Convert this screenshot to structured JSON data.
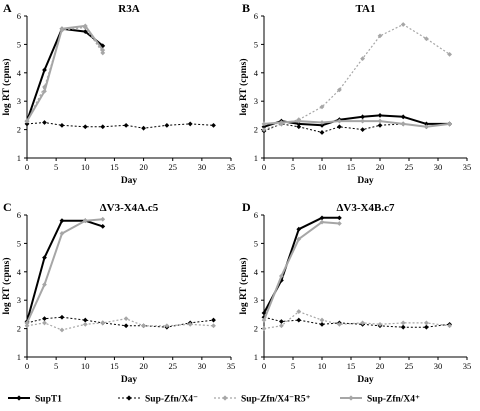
{
  "chart_data": {
    "panels": [
      {
        "panel_label": "A",
        "type": "line",
        "title": "R3A",
        "xlabel": "Day",
        "ylabel": "log RT (cpms)",
        "xlim": [
          0,
          35
        ],
        "ylim": [
          1,
          6
        ],
        "xticks": [
          0,
          5,
          10,
          15,
          20,
          25,
          30,
          35
        ],
        "yticks": [
          1,
          2,
          3,
          4,
          5,
          6
        ],
        "series": [
          {
            "name": "SupT1",
            "x": [
              0,
              3,
              6,
              10,
              13
            ],
            "y": [
              2.3,
              4.1,
              5.55,
              5.45,
              4.95
            ]
          },
          {
            "name": "Sup-Zfn/X4⁻",
            "x": [
              0,
              3,
              6,
              10,
              13,
              17,
              20,
              24,
              28,
              32
            ],
            "y": [
              2.2,
              2.25,
              2.15,
              2.1,
              2.1,
              2.15,
              2.05,
              2.15,
              2.2,
              2.15
            ]
          },
          {
            "name": "Sup-Zfn/X4⁻R5⁺",
            "x": [
              0,
              3,
              6,
              10,
              13
            ],
            "y": [
              2.3,
              3.5,
              5.5,
              5.6,
              4.7
            ]
          },
          {
            "name": "Sup-Zfn/X4⁺",
            "x": [
              0,
              3,
              6,
              10,
              13
            ],
            "y": [
              2.3,
              3.35,
              5.55,
              5.65,
              4.8
            ]
          }
        ]
      },
      {
        "panel_label": "B",
        "type": "line",
        "title": "TA1",
        "xlabel": "Day",
        "ylabel": "log RT (cpms)",
        "xlim": [
          0,
          35
        ],
        "ylim": [
          1,
          6
        ],
        "xticks": [
          0,
          5,
          10,
          15,
          20,
          25,
          30,
          35
        ],
        "yticks": [
          1,
          2,
          3,
          4,
          5,
          6
        ],
        "series": [
          {
            "name": "SupT1",
            "x": [
              0,
              3,
              6,
              10,
              13,
              17,
              20,
              24,
              28,
              32
            ],
            "y": [
              2.1,
              2.3,
              2.2,
              2.15,
              2.35,
              2.45,
              2.5,
              2.45,
              2.2,
              2.2
            ]
          },
          {
            "name": "Sup-Zfn/X4⁻",
            "x": [
              0,
              3,
              6,
              10,
              13,
              17,
              20,
              24,
              28,
              32
            ],
            "y": [
              1.95,
              2.2,
              2.1,
              1.9,
              2.1,
              2.0,
              2.15,
              2.2,
              2.1,
              2.2
            ]
          },
          {
            "name": "Sup-Zfn/X4⁻R5⁺",
            "x": [
              0,
              3,
              6,
              10,
              13,
              17,
              20,
              24,
              28,
              32
            ],
            "y": [
              2.0,
              2.2,
              2.35,
              2.8,
              3.4,
              4.5,
              5.3,
              5.7,
              5.2,
              4.65
            ]
          },
          {
            "name": "Sup-Zfn/X4⁺",
            "x": [
              0,
              3,
              6,
              10,
              13,
              17,
              20,
              24,
              28,
              32
            ],
            "y": [
              2.2,
              2.25,
              2.3,
              2.25,
              2.3,
              2.3,
              2.3,
              2.2,
              2.1,
              2.2
            ]
          }
        ]
      },
      {
        "panel_label": "C",
        "type": "line",
        "title": "ΔV3-X4A.c5",
        "xlabel": "Day",
        "ylabel": "log RT (cpms)",
        "xlim": [
          0,
          35
        ],
        "ylim": [
          1,
          6
        ],
        "xticks": [
          0,
          5,
          10,
          15,
          20,
          25,
          30,
          35
        ],
        "yticks": [
          1,
          2,
          3,
          4,
          5,
          6
        ],
        "series": [
          {
            "name": "SupT1",
            "x": [
              0,
              3,
              6,
              10,
              13
            ],
            "y": [
              2.25,
              4.5,
              5.8,
              5.8,
              5.6
            ]
          },
          {
            "name": "Sup-Zfn/X4⁻",
            "x": [
              0,
              3,
              6,
              10,
              13,
              17,
              20,
              24,
              28,
              32
            ],
            "y": [
              2.2,
              2.35,
              2.4,
              2.3,
              2.2,
              2.1,
              2.1,
              2.05,
              2.2,
              2.3
            ]
          },
          {
            "name": "Sup-Zfn/X4⁻R5⁺",
            "x": [
              0,
              3,
              6,
              10,
              13,
              17,
              20,
              24,
              28,
              32
            ],
            "y": [
              2.1,
              2.2,
              1.95,
              2.15,
              2.2,
              2.35,
              2.1,
              2.1,
              2.15,
              2.1
            ]
          },
          {
            "name": "Sup-Zfn/X4⁺",
            "x": [
              0,
              3,
              6,
              10,
              13
            ],
            "y": [
              2.2,
              3.55,
              5.35,
              5.8,
              5.85
            ]
          }
        ]
      },
      {
        "panel_label": "D",
        "type": "line",
        "title": "ΔV3-X4B.c7",
        "xlabel": "Day",
        "ylabel": "log RT (cpms)",
        "xlim": [
          0,
          35
        ],
        "ylim": [
          1,
          6
        ],
        "xticks": [
          0,
          5,
          10,
          15,
          20,
          25,
          30,
          35
        ],
        "yticks": [
          1,
          2,
          3,
          4,
          5,
          6
        ],
        "series": [
          {
            "name": "SupT1",
            "x": [
              0,
              3,
              6,
              10,
              13
            ],
            "y": [
              2.55,
              3.7,
              5.5,
              5.9,
              5.9
            ]
          },
          {
            "name": "Sup-Zfn/X4⁻",
            "x": [
              0,
              3,
              6,
              10,
              13,
              17,
              20,
              24,
              28,
              32
            ],
            "y": [
              2.4,
              2.25,
              2.3,
              2.15,
              2.2,
              2.15,
              2.1,
              2.05,
              2.05,
              2.15
            ]
          },
          {
            "name": "Sup-Zfn/X4⁻R5⁺",
            "x": [
              0,
              3,
              6,
              10,
              13,
              17,
              20,
              24,
              28,
              32
            ],
            "y": [
              2.0,
              2.1,
              2.6,
              2.3,
              2.15,
              2.2,
              2.15,
              2.2,
              2.2,
              2.1
            ]
          },
          {
            "name": "Sup-Zfn/X4⁺",
            "x": [
              0,
              3,
              6,
              10,
              13
            ],
            "y": [
              2.3,
              3.85,
              5.15,
              5.75,
              5.7
            ]
          }
        ]
      }
    ],
    "legend_placement": "bottom",
    "legend": [
      {
        "label": "SupT1",
        "style": "solid-black"
      },
      {
        "label": "Sup-Zfn/X4⁻",
        "style": "dotted-black"
      },
      {
        "label": "Sup-Zfn/X4⁻R5⁺",
        "style": "dotted-gray"
      },
      {
        "label": "Sup-Zfn/X4⁺",
        "style": "solid-gray"
      }
    ],
    "grid": false
  },
  "colors": {
    "black": "#000000",
    "gray": "#a6a6a6"
  }
}
